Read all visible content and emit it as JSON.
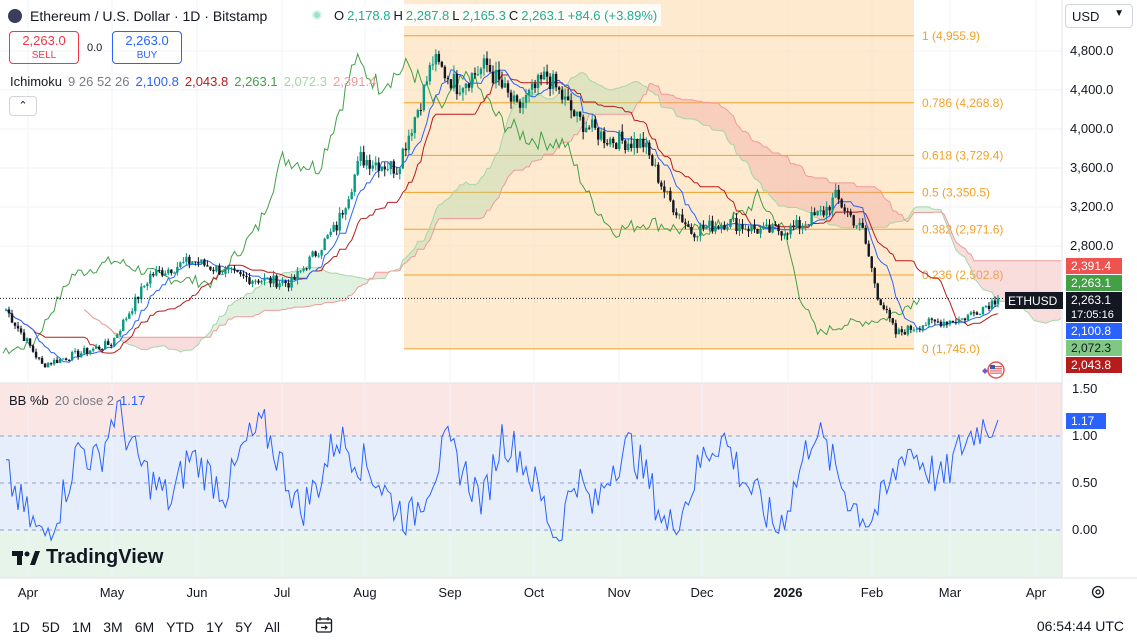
{
  "header": {
    "title": "Ethereum / U.S. Dollar · 1D · Bitstamp",
    "ohlc": [
      {
        "k": "O",
        "v": "2,178.8"
      },
      {
        "k": "H",
        "v": "2,287.8"
      },
      {
        "k": "L",
        "v": "2,165.3"
      },
      {
        "k": "C",
        "v": "2,263.1"
      }
    ],
    "change": "+84.6 (+3.89%)"
  },
  "trade": {
    "sell_price": "2,263.0",
    "sell_label": "SELL",
    "spread": "0.0",
    "buy_price": "2,263.0",
    "buy_label": "BUY"
  },
  "ichimoku": {
    "label": "Ichimoku",
    "params": "9 26 52 26",
    "values": [
      "2,100.8",
      "2,043.8",
      "2,263.1",
      "2,072.3",
      "2,391.4"
    ],
    "colors": [
      "#2962ff",
      "#b71c1c",
      "#43a047",
      "#a5d6a7",
      "#ef9a9a"
    ]
  },
  "bb": {
    "label": "BB %b",
    "params": "20 close 2",
    "value": "1.17"
  },
  "currency": "USD",
  "timeframes": [
    "1D",
    "5D",
    "1M",
    "3M",
    "6M",
    "YTD",
    "1Y",
    "5Y",
    "All"
  ],
  "time": "06:54:44 UTC",
  "logo_text": "TradingView",
  "icons": [
    "ethereum-icon",
    "calendar-range-icon",
    "settings-gear-icon",
    "chevron-up-icon",
    "chevron-down-icon",
    "us-flag-icon"
  ],
  "colors": {
    "up": "#089981",
    "down": "#131722",
    "fib": "#f2a12a",
    "bb_line": "#2962ff"
  },
  "chart_data": [
    {
      "type": "candlestick",
      "symbol": "ETHUSD",
      "x_ticks": [
        "Apr",
        "May",
        "Jun",
        "Jul",
        "Aug",
        "Sep",
        "Oct",
        "Nov",
        "Dec",
        "2026",
        "Feb",
        "Mar",
        "Apr"
      ],
      "y_ticks": [
        "4,800.0",
        "4,400.0",
        "4,000.0",
        "3,600.0",
        "3,200.0",
        "2,800.0"
      ],
      "ylim": [
        1500,
        5200
      ],
      "last_price": "2,263.1",
      "countdown": "17:05:16",
      "price_tags": [
        {
          "label": "2,391.4",
          "color": "#ef5350"
        },
        {
          "label": "2,263.1",
          "color": "#43a047"
        },
        {
          "label": "2,100.8",
          "color": "#2962ff"
        },
        {
          "label": "2,072.3",
          "color": "#81c784"
        },
        {
          "label": "2,043.8",
          "color": "#b71c1c"
        }
      ],
      "fib_levels": [
        {
          "ratio": "1",
          "price": 4955.9,
          "label": "1 (4,955.9)"
        },
        {
          "ratio": "0.786",
          "price": 4268.8,
          "label": "0.786 (4,268.8)"
        },
        {
          "ratio": "0.618",
          "price": 3729.4,
          "label": "0.618 (3,729.4)"
        },
        {
          "ratio": "0.5",
          "price": 3350.5,
          "label": "0.5 (3,350.5)"
        },
        {
          "ratio": "0.382",
          "price": 2971.6,
          "label": "0.382 (2,971.6)"
        },
        {
          "ratio": "0.236",
          "price": 2502.8,
          "label": "0.236 (2,502.8)"
        },
        {
          "ratio": "0",
          "price": 1745.0,
          "label": "0 (1,745.0)"
        }
      ],
      "closes": [
        [
          "Apr",
          1850
        ],
        [
          "Apr",
          1580
        ],
        [
          "May",
          1800
        ],
        [
          "May",
          2500
        ],
        [
          "May",
          2650
        ],
        [
          "Jun",
          2600
        ],
        [
          "Jun",
          2500
        ],
        [
          "Jun",
          2450
        ],
        [
          "Jul",
          2700
        ],
        [
          "Jul",
          3500
        ],
        [
          "Jul",
          3800
        ],
        [
          "Aug",
          3700
        ],
        [
          "Aug",
          4300
        ],
        [
          "Aug",
          4600
        ],
        [
          "Sep",
          4450
        ],
        [
          "Sep",
          4700
        ],
        [
          "Sep",
          4200
        ],
        [
          "Oct",
          4550
        ],
        [
          "Oct",
          4100
        ],
        [
          "Oct",
          3900
        ],
        [
          "Nov",
          3850
        ],
        [
          "Nov",
          3300
        ],
        [
          "Nov",
          2950
        ],
        [
          "Dec",
          3050
        ],
        [
          "Dec",
          2950
        ],
        [
          "Dec",
          2980
        ],
        [
          "2026",
          3150
        ],
        [
          "2026",
          3300
        ],
        [
          "2026",
          2950
        ],
        [
          "Feb",
          2300
        ],
        [
          "Feb",
          1900
        ],
        [
          "Mar",
          2000
        ],
        [
          "Mar",
          2050
        ],
        [
          "Mar",
          2263.1
        ]
      ]
    },
    {
      "type": "line",
      "name": "BB %b",
      "y_ticks": [
        "1.50",
        "1.00",
        "0.50",
        "0.00"
      ],
      "bands": [
        1.0,
        0.0
      ],
      "ylim": [
        -0.5,
        1.5
      ],
      "last_value": "1.17",
      "values": [
        0.6,
        0.2,
        -0.1,
        0.3,
        0.9,
        0.7,
        1.3,
        0.8,
        0.5,
        0.3,
        0.8,
        0.6,
        0.4,
        0.9,
        1.1,
        0.7,
        0.2,
        0.5,
        1.0,
        0.8,
        0.6,
        0.3,
        0.1,
        0.5,
        0.9,
        0.6,
        0.3,
        1.0,
        0.8,
        0.4,
        -0.1,
        0.6,
        0.2,
        0.7,
        0.9,
        0.5,
        0.0,
        0.3,
        0.8,
        1.0,
        0.6,
        0.3,
        0.0,
        0.5,
        1.1,
        0.7,
        0.3,
        0.1,
        0.4,
        0.9,
        0.7,
        0.5,
        0.9,
        1.1,
        1.17
      ]
    }
  ]
}
